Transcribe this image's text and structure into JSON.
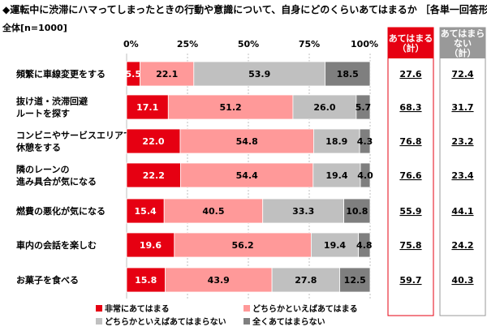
{
  "title": "◆運転中に渋滞にハマってしまったときの行動や意識について、自身にどのくらいあてはまるか ［各単一回答形式］",
  "base_label": "全体[n=1000]",
  "colors": {
    "s1": "#e60012",
    "s2": "#ff9999",
    "s3": "#c0c0c0",
    "s4": "#7f7f7f",
    "applies_header": "#e60012",
    "not_applies_header": "#999999"
  },
  "chart_data": {
    "type": "bar",
    "orientation": "horizontal",
    "stacked": true,
    "xlim": [
      0,
      100
    ],
    "xticks": [
      "0%",
      "25%",
      "50%",
      "75%",
      "100%"
    ],
    "categories": [
      [
        "頻繁に車線変更をする"
      ],
      [
        "抜け道・渋滞回避",
        "ルートを探す"
      ],
      [
        "コンビニやサービスエリアで",
        "休憩をする"
      ],
      [
        "隣のレーンの",
        "進み具合が気になる"
      ],
      [
        "燃費の悪化が気になる"
      ],
      [
        "車内の会話を楽しむ"
      ],
      [
        "お菓子を食べる"
      ]
    ],
    "series": [
      {
        "name": "非常にあてはまる",
        "values": [
          5.5,
          17.1,
          22.0,
          22.2,
          15.4,
          19.6,
          15.8
        ]
      },
      {
        "name": "どちらかといえばあてはまる",
        "values": [
          22.1,
          51.2,
          54.8,
          54.4,
          40.5,
          56.2,
          43.9
        ]
      },
      {
        "name": "どちらかといえばあてはまらない",
        "values": [
          53.9,
          26.0,
          18.9,
          19.4,
          33.3,
          19.4,
          27.8
        ]
      },
      {
        "name": "全くあてはまらない",
        "values": [
          18.5,
          5.7,
          4.3,
          4.0,
          10.8,
          4.8,
          12.5
        ]
      }
    ],
    "summary": [
      {
        "header": [
          "あてはまる",
          "（計）"
        ],
        "values": [
          "27.6",
          "68.3",
          "76.8",
          "76.6",
          "55.9",
          "75.8",
          "59.7"
        ]
      },
      {
        "header": [
          "あてはまら",
          "ない",
          "（計）"
        ],
        "values": [
          "72.4",
          "31.7",
          "23.2",
          "23.4",
          "44.1",
          "24.2",
          "40.3"
        ]
      }
    ],
    "legend_position": "bottom"
  }
}
